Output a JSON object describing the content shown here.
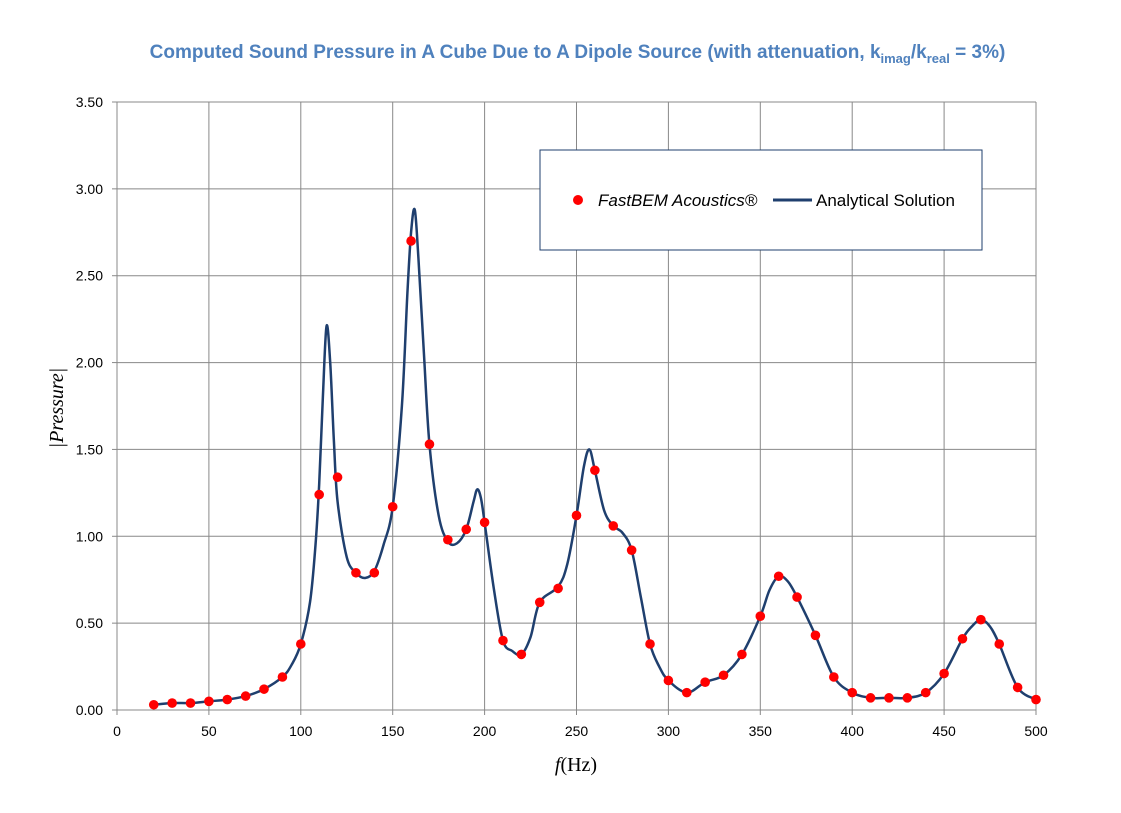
{
  "chart_data": {
    "type": "line",
    "title": {
      "prefix": "Computed Sound Pressure in A Cube Due to A Dipole Source (with attenuation, k",
      "sub1": "imag",
      "mid": "/k",
      "sub2": "real",
      "suffix": " = 3%)"
    },
    "xlabel_italic": "f",
    "xlabel_rest": "(Hz)",
    "ylabel": "|Pressure|",
    "xlim": [
      0,
      500
    ],
    "ylim": [
      0,
      3.5
    ],
    "xticks": [
      "0",
      "50",
      "100",
      "150",
      "200",
      "250",
      "300",
      "350",
      "400",
      "450",
      "500"
    ],
    "yticks": [
      "0.00",
      "0.50",
      "1.00",
      "1.50",
      "2.00",
      "2.50",
      "3.00",
      "3.50"
    ],
    "grid": true,
    "legend_position": "top-right",
    "colors": {
      "markers": "#FF0000",
      "line": "#1F3F6E",
      "title": "#4F81BD",
      "grid": "#888888"
    },
    "series": [
      {
        "name": "FastBEM Acoustics®",
        "style": "markers",
        "x": [
          20,
          30,
          40,
          50,
          60,
          70,
          80,
          90,
          100,
          110,
          120,
          130,
          140,
          150,
          160,
          170,
          180,
          190,
          200,
          210,
          220,
          230,
          240,
          250,
          260,
          270,
          280,
          290,
          300,
          310,
          320,
          330,
          340,
          350,
          360,
          370,
          380,
          390,
          400,
          410,
          420,
          430,
          440,
          450,
          460,
          470,
          480,
          490,
          500
        ],
        "y": [
          0.03,
          0.04,
          0.04,
          0.05,
          0.06,
          0.08,
          0.12,
          0.19,
          0.38,
          1.24,
          1.34,
          0.79,
          0.79,
          1.17,
          2.7,
          1.53,
          0.98,
          1.04,
          1.08,
          0.4,
          0.32,
          0.62,
          0.7,
          1.12,
          1.38,
          1.06,
          0.92,
          0.38,
          0.17,
          0.1,
          0.16,
          0.2,
          0.32,
          0.54,
          0.77,
          0.65,
          0.43,
          0.19,
          0.1,
          0.07,
          0.07,
          0.07,
          0.1,
          0.21,
          0.41,
          0.52,
          0.38,
          0.13,
          0.06
        ]
      },
      {
        "name": "Analytical Solution",
        "style": "line",
        "x": [
          20,
          30,
          40,
          50,
          60,
          70,
          80,
          90,
          95,
          100,
          105,
          108,
          110,
          112,
          114,
          116,
          118,
          120,
          125,
          130,
          135,
          140,
          145,
          150,
          155,
          158,
          160,
          162,
          164,
          167,
          170,
          175,
          180,
          185,
          190,
          194,
          196,
          198,
          200,
          205,
          210,
          215,
          220,
          225,
          230,
          240,
          245,
          250,
          254,
          257,
          260,
          265,
          270,
          275,
          280,
          285,
          290,
          295,
          300,
          310,
          320,
          330,
          340,
          350,
          355,
          360,
          365,
          370,
          380,
          390,
          400,
          410,
          420,
          430,
          440,
          450,
          460,
          465,
          470,
          475,
          480,
          490,
          500
        ],
        "y": [
          0.03,
          0.04,
          0.04,
          0.05,
          0.06,
          0.08,
          0.12,
          0.19,
          0.26,
          0.38,
          0.62,
          0.95,
          1.3,
          1.8,
          2.21,
          2.0,
          1.55,
          1.2,
          0.88,
          0.79,
          0.76,
          0.8,
          0.95,
          1.17,
          1.75,
          2.4,
          2.75,
          2.88,
          2.6,
          2.05,
          1.53,
          1.12,
          0.97,
          0.96,
          1.04,
          1.2,
          1.27,
          1.22,
          1.08,
          0.7,
          0.4,
          0.34,
          0.32,
          0.42,
          0.62,
          0.71,
          0.84,
          1.12,
          1.4,
          1.5,
          1.38,
          1.15,
          1.06,
          1.02,
          0.92,
          0.65,
          0.38,
          0.25,
          0.17,
          0.1,
          0.16,
          0.2,
          0.32,
          0.54,
          0.69,
          0.77,
          0.74,
          0.65,
          0.43,
          0.19,
          0.1,
          0.07,
          0.07,
          0.07,
          0.1,
          0.21,
          0.41,
          0.48,
          0.52,
          0.48,
          0.38,
          0.13,
          0.06
        ]
      }
    ]
  }
}
